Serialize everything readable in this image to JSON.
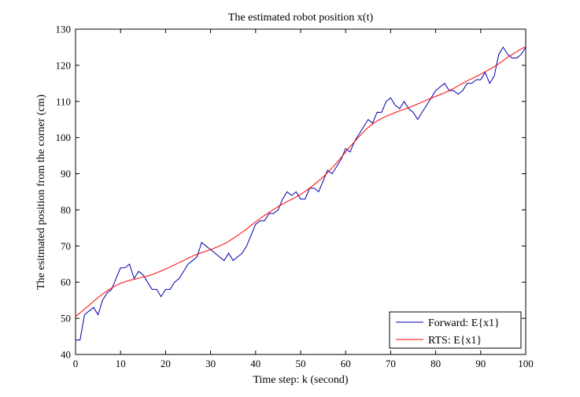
{
  "chart_data": {
    "type": "line",
    "title": "The estimated robot position x(t)",
    "xlabel": "Time step: k (second)",
    "ylabel": "The esitmated position from the corner (cm)",
    "xlim": [
      0,
      100
    ],
    "ylim": [
      40,
      130
    ],
    "xticks": [
      0,
      10,
      20,
      30,
      40,
      50,
      60,
      70,
      80,
      90,
      100
    ],
    "yticks": [
      40,
      50,
      60,
      70,
      80,
      90,
      100,
      110,
      120,
      130
    ],
    "grid": false,
    "legend_position": "bottom-right",
    "x": [
      0,
      1,
      2,
      3,
      4,
      5,
      6,
      7,
      8,
      9,
      10,
      11,
      12,
      13,
      14,
      15,
      16,
      17,
      18,
      19,
      20,
      21,
      22,
      23,
      24,
      25,
      26,
      27,
      28,
      29,
      30,
      31,
      32,
      33,
      34,
      35,
      36,
      37,
      38,
      39,
      40,
      41,
      42,
      43,
      44,
      45,
      46,
      47,
      48,
      49,
      50,
      51,
      52,
      53,
      54,
      55,
      56,
      57,
      58,
      59,
      60,
      61,
      62,
      63,
      64,
      65,
      66,
      67,
      68,
      69,
      70,
      71,
      72,
      73,
      74,
      75,
      76,
      77,
      78,
      79,
      80,
      81,
      82,
      83,
      84,
      85,
      86,
      87,
      88,
      89,
      90,
      91,
      92,
      93,
      94,
      95,
      96,
      97,
      98,
      99,
      100
    ],
    "series": [
      {
        "name": "Forward: E{x1}",
        "color": "#0000aa",
        "values": [
          44,
          44,
          51,
          52,
          53,
          51,
          55,
          57,
          58,
          61,
          64,
          64,
          65,
          61,
          63,
          62,
          60,
          58,
          58,
          56,
          58,
          58,
          60,
          61,
          63,
          65,
          66,
          67,
          71,
          70,
          69,
          68,
          67,
          66,
          68,
          66,
          67,
          68,
          70,
          73,
          76,
          77,
          77,
          79,
          79,
          80,
          83,
          85,
          84,
          85,
          83,
          83,
          86,
          86,
          85,
          88,
          91,
          90,
          92,
          94,
          97,
          96,
          99,
          101,
          103,
          105,
          104,
          107,
          107,
          110,
          111,
          109,
          108,
          110,
          108,
          107,
          105,
          107,
          109,
          111,
          113,
          114,
          115,
          113,
          113,
          112,
          113,
          115,
          115,
          116,
          116,
          118,
          115,
          117,
          123,
          125,
          123,
          122,
          122,
          123,
          125
        ]
      },
      {
        "name": "RTS: E{x1}",
        "color": "#ff0000",
        "values": [
          50.5,
          51.5,
          52.6,
          53.6,
          54.7,
          55.7,
          56.7,
          57.6,
          58.4,
          59.1,
          59.7,
          60.1,
          60.5,
          60.8,
          61.1,
          61.4,
          61.7,
          62.1,
          62.6,
          63.1,
          63.6,
          64.2,
          64.8,
          65.4,
          66.0,
          66.6,
          67.2,
          67.7,
          68.2,
          68.6,
          69.0,
          69.5,
          70.0,
          70.6,
          71.3,
          72.1,
          72.9,
          73.8,
          74.7,
          75.7,
          76.7,
          77.6,
          78.5,
          79.3,
          80.1,
          80.9,
          81.6,
          82.3,
          82.9,
          83.6,
          84.3,
          85.1,
          86.0,
          87.0,
          88.0,
          89.1,
          90.3,
          91.6,
          93.0,
          94.5,
          96.0,
          97.5,
          98.9,
          100.3,
          101.6,
          102.8,
          103.8,
          104.6,
          105.3,
          105.9,
          106.4,
          106.9,
          107.4,
          107.8,
          108.3,
          108.8,
          109.3,
          109.8,
          110.4,
          110.9,
          111.4,
          111.9,
          112.4,
          113.0,
          113.6,
          114.3,
          115.0,
          115.7,
          116.3,
          116.9,
          117.5,
          118.2,
          118.9,
          119.6,
          120.4,
          121.3,
          122.2,
          123.0,
          123.8,
          124.5,
          125.2
        ]
      }
    ]
  }
}
